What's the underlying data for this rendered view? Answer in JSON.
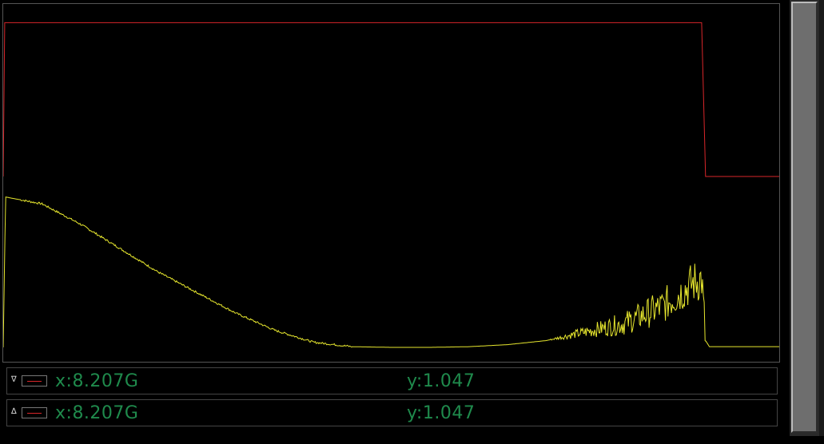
{
  "colors": {
    "trace_red": "#d8262a",
    "trace_yellow": "#e6e62e",
    "readout_green": "#1f8a4c"
  },
  "markers": [
    {
      "direction": "down",
      "symbol": "∇",
      "x_label": "x:",
      "x_value": "8.207G",
      "y_label": "y:",
      "y_value": "1.047"
    },
    {
      "direction": "up",
      "symbol": "∆",
      "x_label": "x:",
      "x_value": "8.207G",
      "y_label": "y:",
      "y_value": "1.047"
    }
  ],
  "chart_data": {
    "type": "line",
    "grid": false,
    "xlim": [
      0,
      1
    ],
    "ylim": [
      0,
      1
    ],
    "series": [
      {
        "color": "#d8262a",
        "x": [
          0.0,
          0.002,
          0.9,
          0.905,
          1.0
        ],
        "y": [
          0.5,
          0.95,
          0.95,
          0.5,
          0.5
        ]
      },
      {
        "color": "#e6e62e",
        "x": [
          0.0,
          0.003,
          0.05,
          0.1,
          0.15,
          0.2,
          0.25,
          0.3,
          0.35,
          0.4,
          0.45,
          0.5,
          0.55,
          0.6,
          0.65,
          0.7,
          0.75,
          0.8,
          0.85,
          0.89,
          0.9,
          0.905,
          0.91,
          1.0
        ],
        "y": [
          0.0,
          0.44,
          0.42,
          0.36,
          0.29,
          0.22,
          0.16,
          0.1,
          0.05,
          0.015,
          0.002,
          0.0,
          0.0,
          0.002,
          0.008,
          0.02,
          0.045,
          0.07,
          0.12,
          0.19,
          0.2,
          0.02,
          0.002,
          0.002
        ],
        "noise_start_x": 0.7,
        "noise_end_x": 0.905
      }
    ]
  }
}
